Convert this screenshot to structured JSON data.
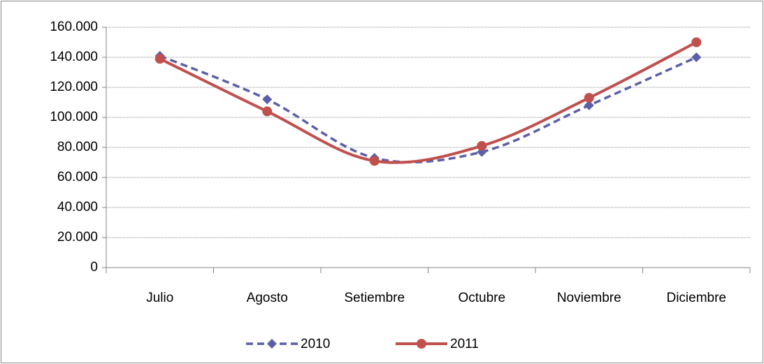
{
  "chart_data": {
    "type": "line",
    "categories": [
      "Julio",
      "Agosto",
      "Setiembre",
      "Octubre",
      "Noviembre",
      "Diciembre"
    ],
    "series": [
      {
        "name": "2010",
        "color": "#5b5fa8",
        "dashed": true,
        "marker": "diamond",
        "smooth": true,
        "values": [
          141000,
          112000,
          73000,
          77000,
          108000,
          140000
        ]
      },
      {
        "name": "2011",
        "color": "#c0504d",
        "dashed": false,
        "marker": "circle",
        "smooth": true,
        "values": [
          139000,
          104000,
          71000,
          81000,
          113000,
          150000
        ]
      }
    ],
    "ylim": [
      0,
      160000
    ],
    "yticks": [
      0,
      {
        "value": 20000,
        "label": "20.000"
      },
      {
        "value": 40000,
        "label": "40.000"
      },
      {
        "value": 60000,
        "label": "60.000"
      },
      {
        "value": 80000,
        "label": "80.000"
      },
      {
        "value": 100000,
        "label": "100.000"
      },
      {
        "value": 120000,
        "label": "120.000"
      },
      {
        "value": 140000,
        "label": "140.000"
      },
      {
        "value": 160000,
        "label": "160.000"
      }
    ],
    "grid": true,
    "legend": "bottom"
  }
}
